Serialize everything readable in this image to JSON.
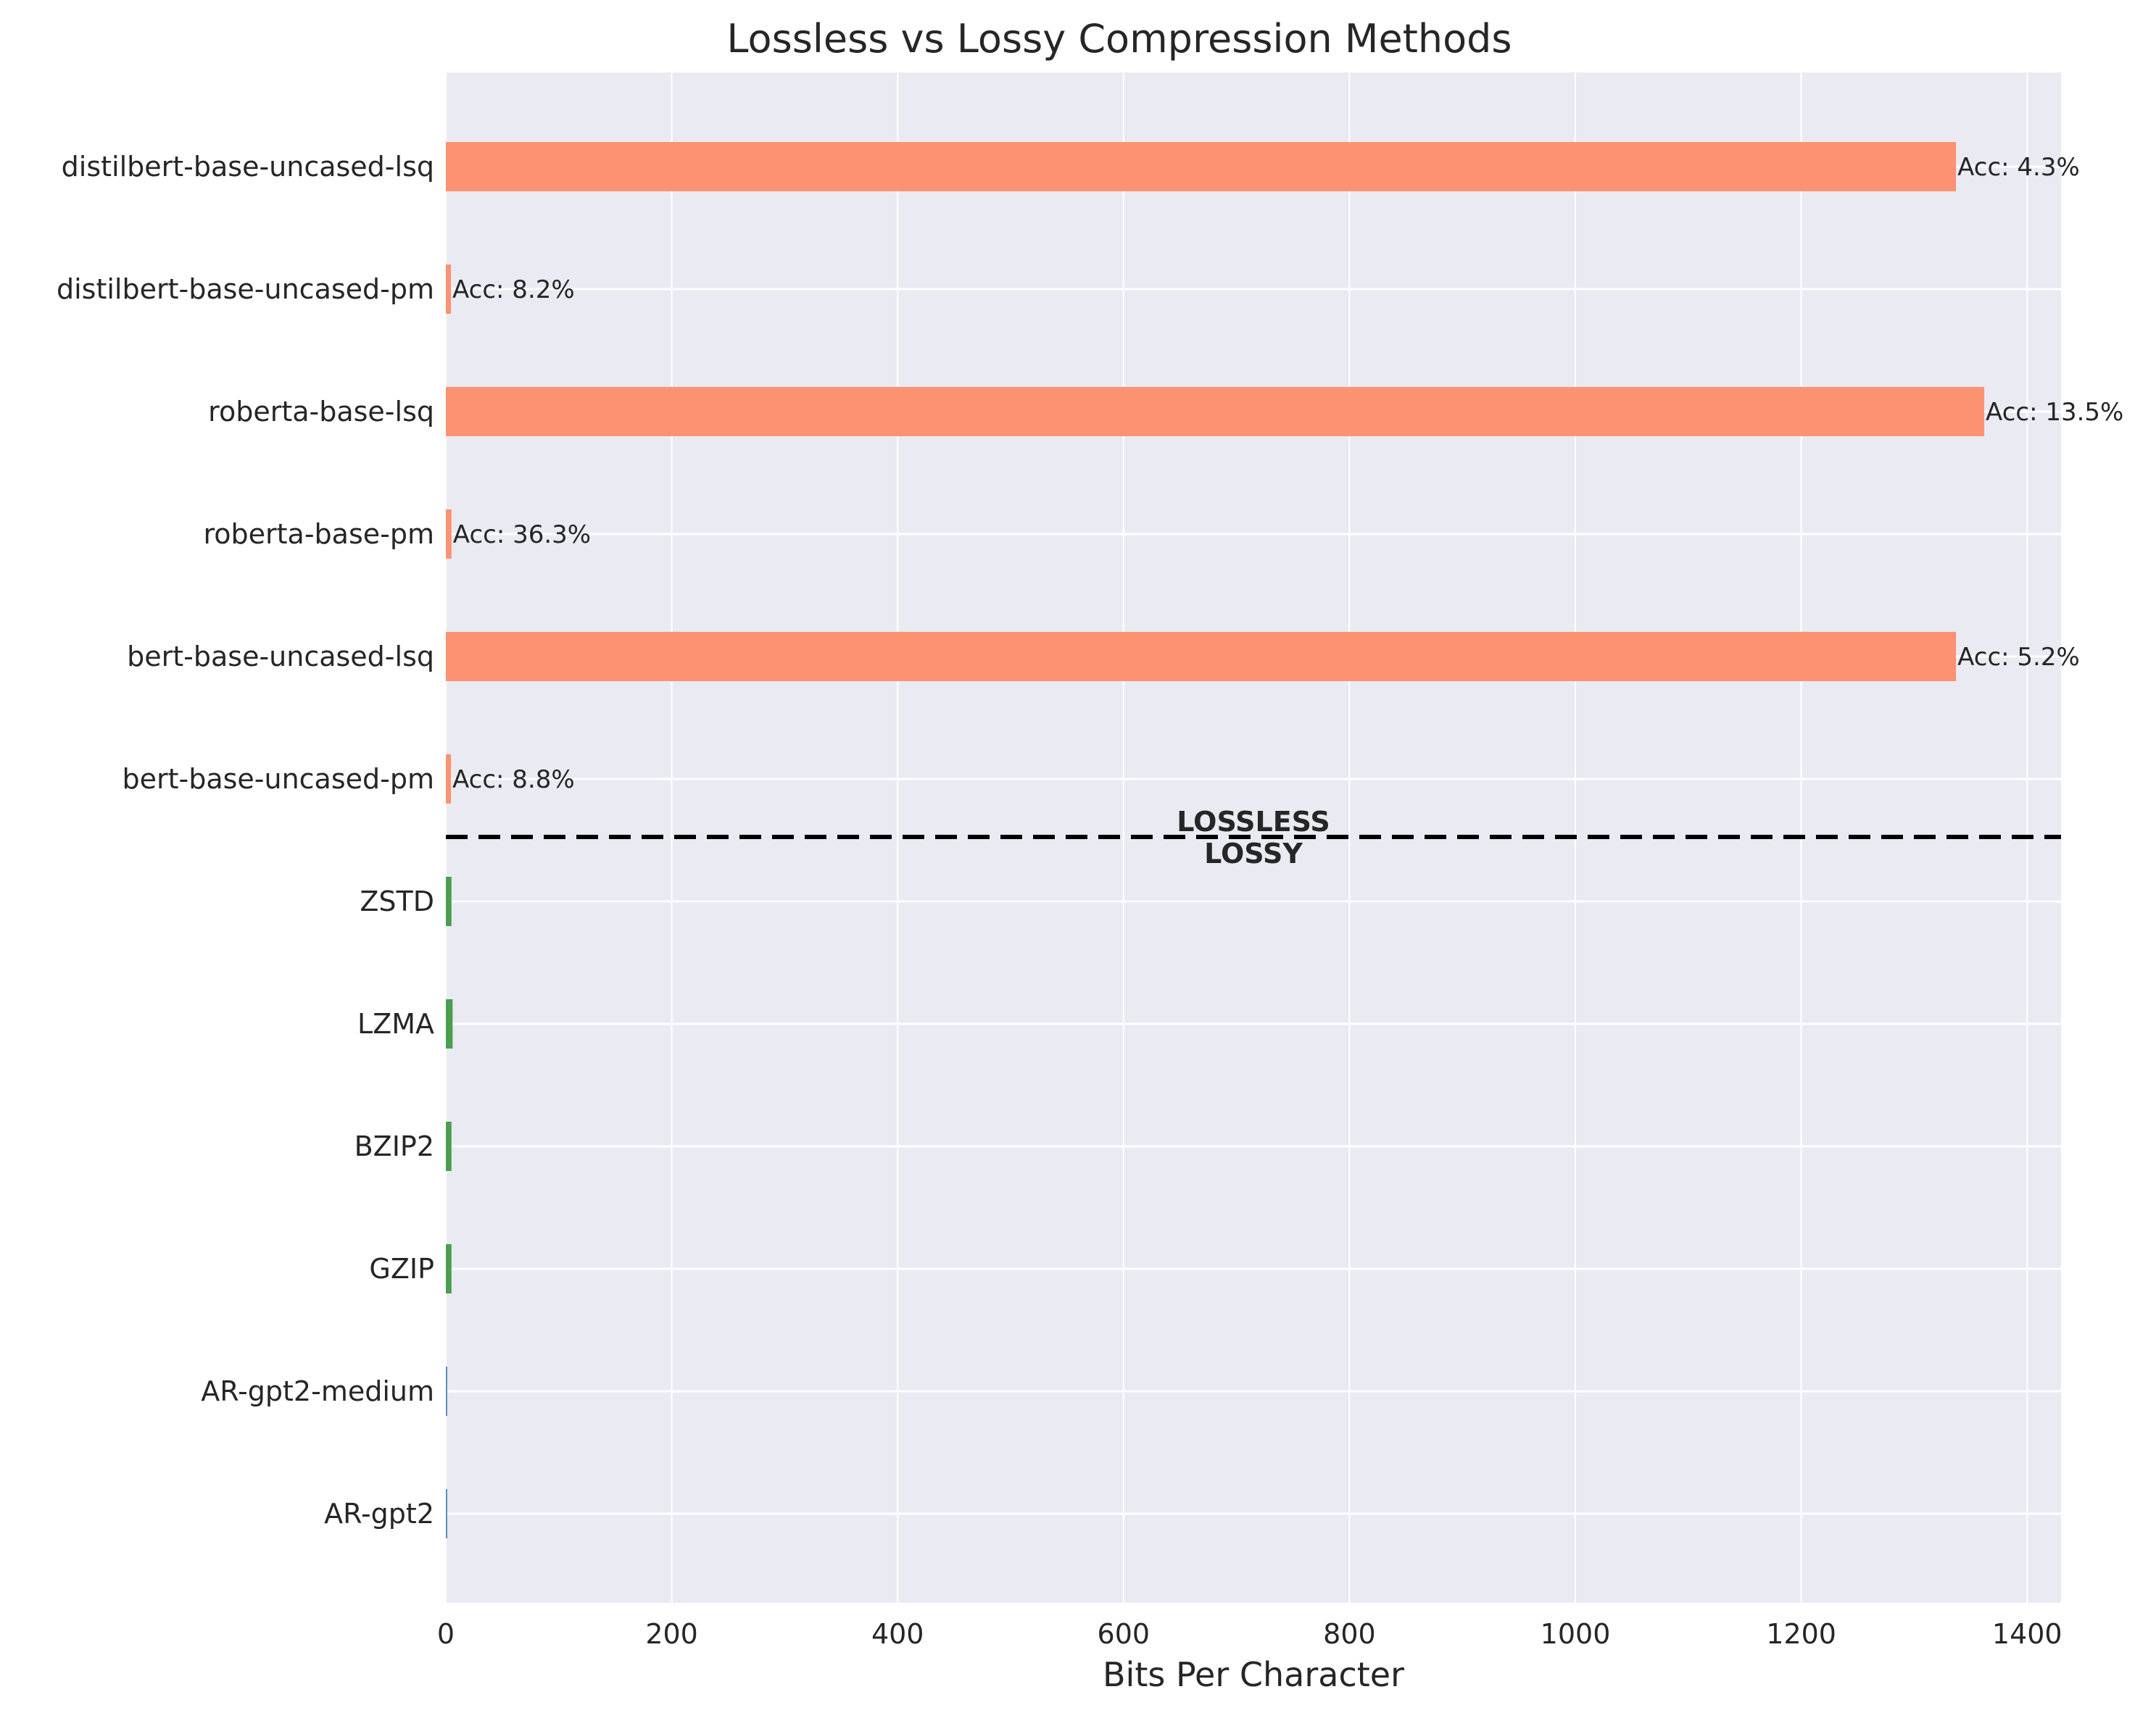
{
  "chart_data": {
    "type": "bar",
    "orientation": "horizontal",
    "title": "Lossless vs Lossy Compression Methods",
    "xlabel": "Bits Per Character",
    "ylabel": "",
    "xlim": [
      0,
      1430
    ],
    "xticks": [
      0,
      200,
      400,
      600,
      800,
      1000,
      1200,
      1400
    ],
    "grid": true,
    "categories": [
      "distilbert-base-uncased-lsq",
      "distilbert-base-uncased-pm",
      "roberta-base-lsq",
      "roberta-base-pm",
      "bert-base-uncased-lsq",
      "bert-base-uncased-pm",
      "ZSTD",
      "LZMA",
      "BZIP2",
      "GZIP",
      "AR-gpt2-medium",
      "AR-gpt2"
    ],
    "values": [
      1337,
      4.5,
      1362,
      5,
      1337,
      4.5,
      5,
      6,
      5,
      5,
      1.0,
      1.0
    ],
    "groups": [
      "lossy",
      "lossy",
      "lossy",
      "lossy",
      "lossy",
      "lossy",
      "lossless",
      "lossless",
      "lossless",
      "lossless",
      "ar",
      "ar"
    ],
    "bar_labels": [
      "Acc: 4.3%",
      "Acc: 8.2%",
      "Acc: 13.5%",
      "Acc: 36.3%",
      "Acc: 5.2%",
      "Acc: 8.8%",
      "",
      "",
      "",
      "",
      "",
      ""
    ],
    "colors": {
      "lossy": "#fc9272",
      "lossless": "#4a9e4e",
      "ar": "#5b8fb9"
    },
    "divider": {
      "upper_label": "LOSSLESS",
      "lower_label": "LOSSY"
    }
  }
}
